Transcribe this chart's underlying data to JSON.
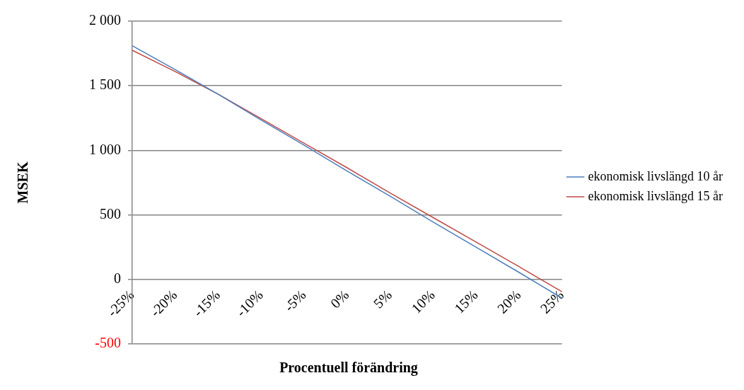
{
  "chart_data": {
    "type": "line",
    "xlabel": "Procentuell förändring",
    "ylabel": "MSEK",
    "categories": [
      "-25%",
      "-20%",
      "-15%",
      "-10%",
      "-5%",
      "0%",
      "5%",
      "10%",
      "15%",
      "20%",
      "25%"
    ],
    "series": [
      {
        "name": "ekonomisk livslängd 10 år",
        "color": "#4a7ebb",
        "values": [
          1810,
          1625,
          1435,
          1235,
          1040,
          840,
          645,
          445,
          250,
          55,
          -145
        ]
      },
      {
        "name": "ekonomisk livslängd 15 år",
        "color": "#be4b48",
        "values": [
          1775,
          1610,
          1435,
          1245,
          1055,
          865,
          670,
          480,
          290,
          100,
          -95
        ]
      }
    ],
    "ylim": [
      -500,
      2000
    ],
    "yticks": [
      {
        "value": -500,
        "label": "-500"
      },
      {
        "value": 0,
        "label": "0"
      },
      {
        "value": 500,
        "label": "500"
      },
      {
        "value": 1000,
        "label": "1 000"
      },
      {
        "value": 1500,
        "label": "1 500"
      },
      {
        "value": 2000,
        "label": "2 000"
      }
    ],
    "grid": "y",
    "legend": "right",
    "marker": "none",
    "line_style": "solid"
  }
}
